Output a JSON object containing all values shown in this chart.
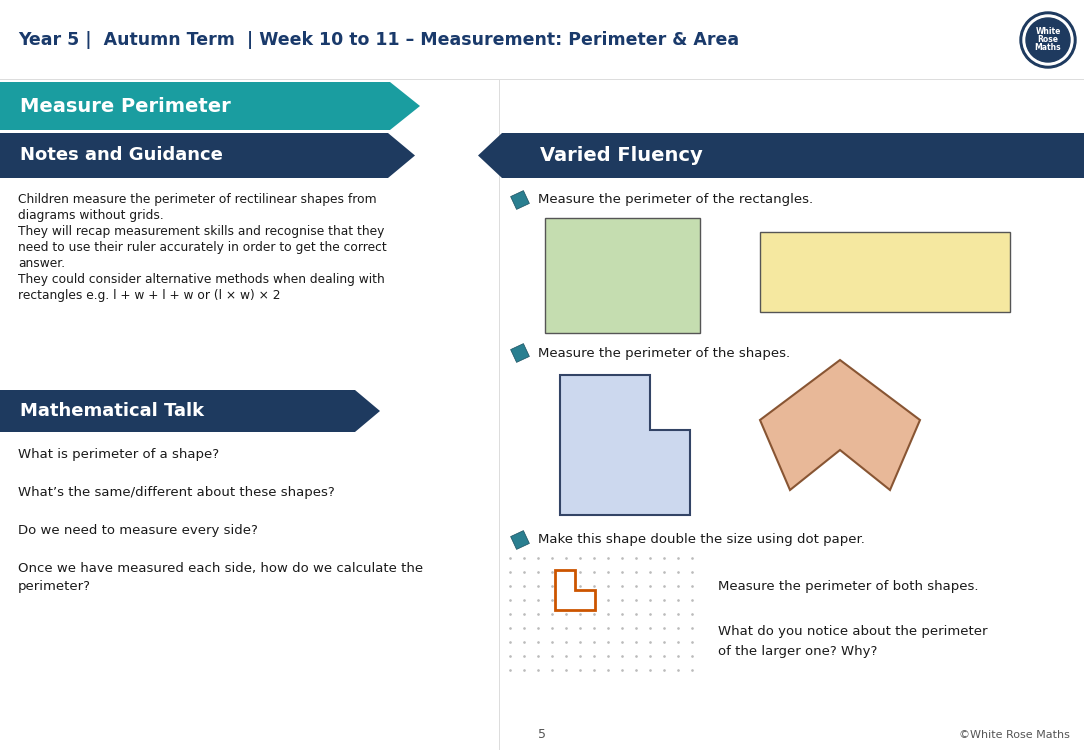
{
  "title": "Year 5 |  Autumn Term  | Week 10 to 11 – Measurement: Perimeter & Area",
  "title_color": "#1a3a6b",
  "bg_color": "#ffffff",
  "teal_color": "#1a9da0",
  "dark_blue": "#1e3a5f",
  "section1_title": "Measure Perimeter",
  "section2_title": "Notes and Guidance",
  "section3_title": "Mathematical Talk",
  "section4_title": "Varied Fluency",
  "notes_text": [
    "Children measure the perimeter of rectilinear shapes from",
    "diagrams without grids.",
    "They will recap measurement skills and recognise that they",
    "need to use their ruler accurately in order to get the correct",
    "answer.",
    "They could consider alternative methods when dealing with",
    "rectangles e.g. l + w + l + w or (l × w) × 2"
  ],
  "math_talk_items": [
    "What is perimeter of a shape?",
    "What’s the same/different about these shapes?",
    "Do we need to measure every side?",
    "Once we have measured each side, how do we calculate the\nperimeter?"
  ],
  "vf_q1": "Measure the perimeter of the rectangles.",
  "vf_q2": "Measure the perimeter of the shapes.",
  "vf_q3": "Make this shape double the size using dot paper.",
  "vf_q3b": "Measure the perimeter of both shapes.",
  "vf_q3c": "What do you notice about the perimeter\nof the larger one? Why?",
  "footer": "5",
  "footer_right": "©White Rose Maths",
  "rect1_color": "#c5ddb0",
  "rect2_color": "#f5e8a0",
  "shape1_color": "#ccd8ee",
  "shape2_color": "#e8b898",
  "icon_color": "#2a7f90",
  "icon_dark": "#1a5060"
}
